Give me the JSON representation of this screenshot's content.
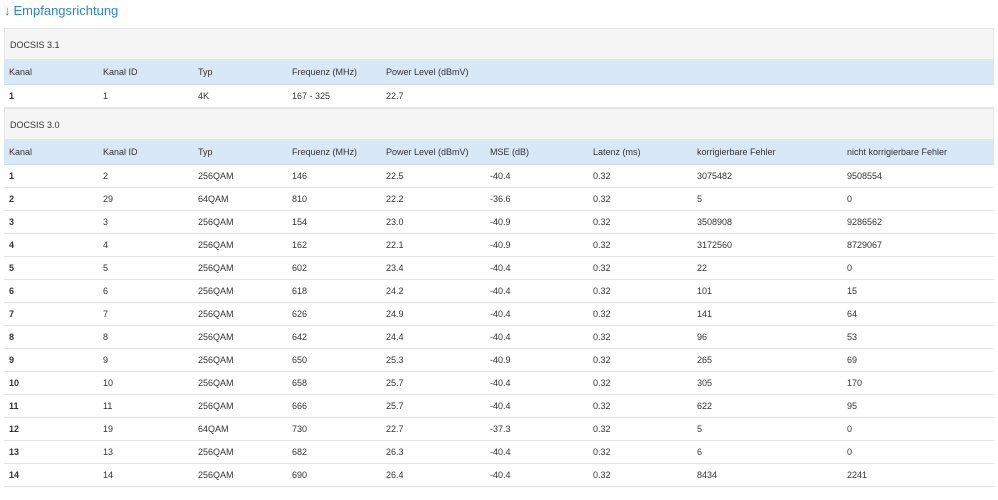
{
  "heading": {
    "arrow": "↓",
    "title": "Empfangsrichtung"
  },
  "docsis31": {
    "section_label": "DOCSIS 3.1",
    "headers": [
      "Kanal",
      "Kanal ID",
      "Typ",
      "Frequenz (MHz)",
      "Power Level (dBmV)"
    ],
    "rows": [
      [
        "1",
        "1",
        "4K",
        "167 - 325",
        "22.7"
      ]
    ]
  },
  "docsis30": {
    "section_label": "DOCSIS 3.0",
    "headers": [
      "Kanal",
      "Kanal ID",
      "Typ",
      "Frequenz (MHz)",
      "Power Level (dBmV)",
      "MSE (dB)",
      "Latenz (ms)",
      "korrigierbare Fehler",
      "nicht korrigierbare Fehler"
    ],
    "rows": [
      [
        "1",
        "2",
        "256QAM",
        "146",
        "22.5",
        "-40.4",
        "0.32",
        "3075482",
        "9508554"
      ],
      [
        "2",
        "29",
        "64QAM",
        "810",
        "22.2",
        "-36.6",
        "0.32",
        "5",
        "0"
      ],
      [
        "3",
        "3",
        "256QAM",
        "154",
        "23.0",
        "-40.9",
        "0.32",
        "3508908",
        "9286562"
      ],
      [
        "4",
        "4",
        "256QAM",
        "162",
        "22.1",
        "-40.9",
        "0.32",
        "3172560",
        "8729067"
      ],
      [
        "5",
        "5",
        "256QAM",
        "602",
        "23.4",
        "-40.4",
        "0.32",
        "22",
        "0"
      ],
      [
        "6",
        "6",
        "256QAM",
        "618",
        "24.2",
        "-40.4",
        "0.32",
        "101",
        "15"
      ],
      [
        "7",
        "7",
        "256QAM",
        "626",
        "24.9",
        "-40.4",
        "0.32",
        "141",
        "64"
      ],
      [
        "8",
        "8",
        "256QAM",
        "642",
        "24.4",
        "-40.4",
        "0.32",
        "96",
        "53"
      ],
      [
        "9",
        "9",
        "256QAM",
        "650",
        "25.3",
        "-40.9",
        "0.32",
        "265",
        "69"
      ],
      [
        "10",
        "10",
        "256QAM",
        "658",
        "25.7",
        "-40.4",
        "0.32",
        "305",
        "170"
      ],
      [
        "11",
        "11",
        "256QAM",
        "666",
        "25.7",
        "-40.4",
        "0.32",
        "622",
        "95"
      ],
      [
        "12",
        "19",
        "64QAM",
        "730",
        "22.7",
        "-37.3",
        "0.32",
        "5",
        "0"
      ],
      [
        "13",
        "13",
        "256QAM",
        "682",
        "26.3",
        "-40.4",
        "0.32",
        "6",
        "0"
      ],
      [
        "14",
        "14",
        "256QAM",
        "690",
        "26.4",
        "-40.4",
        "0.32",
        "8434",
        "2241"
      ]
    ]
  }
}
